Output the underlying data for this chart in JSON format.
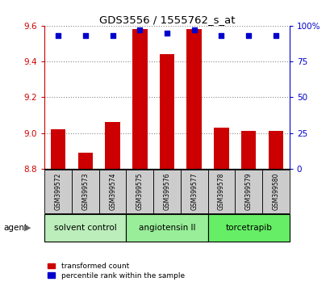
{
  "title": "GDS3556 / 1555762_s_at",
  "samples": [
    "GSM399572",
    "GSM399573",
    "GSM399574",
    "GSM399575",
    "GSM399576",
    "GSM399577",
    "GSM399578",
    "GSM399579",
    "GSM399580"
  ],
  "bar_values": [
    9.02,
    8.89,
    9.06,
    9.58,
    9.44,
    9.58,
    9.03,
    9.01,
    9.01
  ],
  "percentile_values": [
    93,
    93,
    93,
    97,
    95,
    97,
    93,
    93,
    93
  ],
  "ylim_left": [
    8.8,
    9.6
  ],
  "ylim_right": [
    0,
    100
  ],
  "yticks_left": [
    8.8,
    9.0,
    9.2,
    9.4,
    9.6
  ],
  "yticks_right": [
    0,
    25,
    50,
    75,
    100
  ],
  "ytick_labels_right": [
    "0",
    "25",
    "50",
    "75",
    "100%"
  ],
  "bar_color": "#cc0000",
  "dot_color": "#0000cc",
  "groups": [
    {
      "label": "solvent control",
      "indices": [
        0,
        1,
        2
      ],
      "color": "#bbeebb"
    },
    {
      "label": "angiotensin II",
      "indices": [
        3,
        4,
        5
      ],
      "color": "#99ee99"
    },
    {
      "label": "torcetrapib",
      "indices": [
        6,
        7,
        8
      ],
      "color": "#66ee66"
    }
  ],
  "legend_bar_label": "transformed count",
  "legend_dot_label": "percentile rank within the sample",
  "agent_label": "agent",
  "grid_color": "#888888",
  "tick_label_color_left": "#cc0000",
  "tick_label_color_right": "#0000cc",
  "bar_bottom": 8.8,
  "sample_label_bg": "#cccccc"
}
